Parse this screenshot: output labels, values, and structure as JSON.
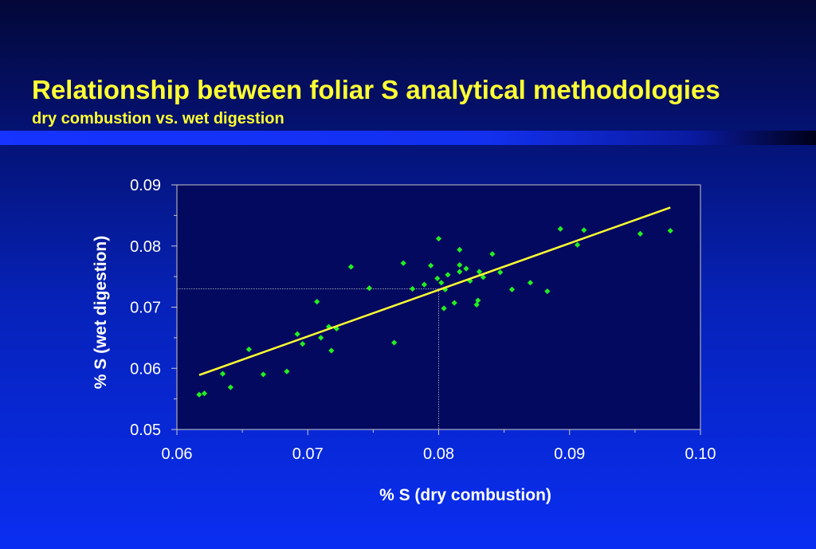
{
  "slide": {
    "title": "Relationship between foliar S analytical methodologies",
    "subtitle": "dry combustion vs. wet digestion"
  },
  "colors": {
    "title": "#ffff33",
    "plot_background": "#03095e",
    "points": "#22ee22",
    "trendline": "#ffff33",
    "guides": "#9aa0b0"
  },
  "chart_data": {
    "type": "scatter",
    "title": "",
    "xlabel": "% S (dry combustion)",
    "ylabel": "% S (wet digestion)",
    "xlim": [
      0.06,
      0.1
    ],
    "ylim": [
      0.05,
      0.09
    ],
    "xticks": [
      "0.06",
      "0.07",
      "0.08",
      "0.09",
      "0.10"
    ],
    "yticks": [
      "0.05",
      "0.06",
      "0.07",
      "0.08",
      "0.09"
    ],
    "grid": false,
    "legend": false,
    "guide_lines": {
      "x": 0.08,
      "y": 0.073
    },
    "trendline": {
      "from": [
        0.0617,
        0.0589
      ],
      "to": [
        0.0977,
        0.0863
      ]
    },
    "series": [
      {
        "marker": "diamond",
        "points": [
          [
            0.0617,
            0.0557
          ],
          [
            0.0621,
            0.0559
          ],
          [
            0.0635,
            0.0591
          ],
          [
            0.0641,
            0.0569
          ],
          [
            0.0655,
            0.0631
          ],
          [
            0.0666,
            0.059
          ],
          [
            0.0684,
            0.0595
          ],
          [
            0.0692,
            0.0656
          ],
          [
            0.0696,
            0.064
          ],
          [
            0.0707,
            0.0709
          ],
          [
            0.071,
            0.065
          ],
          [
            0.0716,
            0.0668
          ],
          [
            0.0718,
            0.0629
          ],
          [
            0.0722,
            0.0665
          ],
          [
            0.0733,
            0.0766
          ],
          [
            0.0747,
            0.0731
          ],
          [
            0.0766,
            0.0642
          ],
          [
            0.0773,
            0.0772
          ],
          [
            0.078,
            0.073
          ],
          [
            0.0789,
            0.0737
          ],
          [
            0.0794,
            0.0768
          ],
          [
            0.0799,
            0.0747
          ],
          [
            0.08,
            0.0812
          ],
          [
            0.0802,
            0.074
          ],
          [
            0.0804,
            0.0698
          ],
          [
            0.0805,
            0.0729
          ],
          [
            0.0807,
            0.0753
          ],
          [
            0.0812,
            0.0707
          ],
          [
            0.0816,
            0.0758
          ],
          [
            0.0816,
            0.0769
          ],
          [
            0.0816,
            0.0794
          ],
          [
            0.0821,
            0.0763
          ],
          [
            0.0824,
            0.0743
          ],
          [
            0.0829,
            0.0704
          ],
          [
            0.083,
            0.0711
          ],
          [
            0.0831,
            0.0758
          ],
          [
            0.0834,
            0.0749
          ],
          [
            0.0841,
            0.0787
          ],
          [
            0.0847,
            0.0757
          ],
          [
            0.0856,
            0.0729
          ],
          [
            0.087,
            0.074
          ],
          [
            0.0883,
            0.0726
          ],
          [
            0.0893,
            0.0828
          ],
          [
            0.0906,
            0.0802
          ],
          [
            0.0911,
            0.0826
          ],
          [
            0.0954,
            0.082
          ],
          [
            0.0977,
            0.0825
          ]
        ]
      }
    ]
  }
}
